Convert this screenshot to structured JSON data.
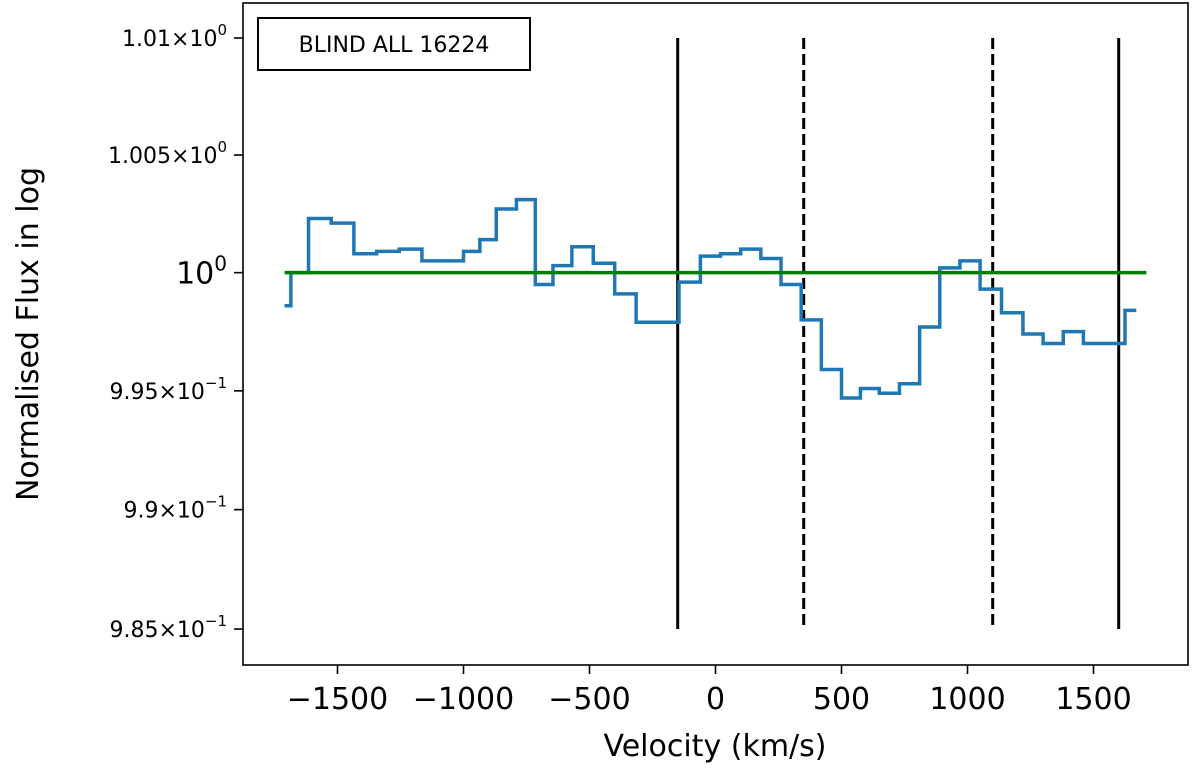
{
  "chart_data": {
    "type": "line",
    "title": "",
    "annotation": "BLIND ALL 16224",
    "xlabel": "Velocity (km/s)",
    "ylabel": "Normalised Flux in log",
    "xlim": [
      -1875,
      1875
    ],
    "ylim": [
      0.9835,
      1.0115
    ],
    "y_scale": "log",
    "grid": false,
    "x_ticks": [
      {
        "value": -1500,
        "label": "−1500"
      },
      {
        "value": -1000,
        "label": "−1000"
      },
      {
        "value": -500,
        "label": "−500"
      },
      {
        "value": 0,
        "label": "0"
      },
      {
        "value": 500,
        "label": "500"
      },
      {
        "value": 1000,
        "label": "1000"
      },
      {
        "value": 1500,
        "label": "1500"
      }
    ],
    "y_ticks": [
      {
        "value": 1.01,
        "mantissa": "1.01",
        "exp": "0",
        "large": false
      },
      {
        "value": 1.005,
        "mantissa": "1.005",
        "exp": "0",
        "large": false
      },
      {
        "value": 1.0,
        "mantissa": "10",
        "exp": "0",
        "large": true
      },
      {
        "value": 0.995,
        "mantissa": "9.95",
        "exp": "−1",
        "large": false
      },
      {
        "value": 0.99,
        "mantissa": "9.9",
        "exp": "−1",
        "large": false
      },
      {
        "value": 0.985,
        "mantissa": "9.85",
        "exp": "−1",
        "large": false
      }
    ],
    "series": [
      {
        "style": "steps-mid",
        "color": "#1f77b4",
        "x": [
          -1710,
          -1660,
          -1570,
          -1480,
          -1390,
          -1300,
          -1210,
          -1120,
          -1040,
          -960,
          -910,
          -830,
          -750,
          -680,
          -610,
          -530,
          -440,
          -360,
          -270,
          -190,
          -100,
          -20,
          60,
          140,
          220,
          300,
          380,
          460,
          540,
          610,
          690,
          770,
          850,
          930,
          1010,
          1090,
          1180,
          1260,
          1340,
          1420,
          1500,
          1580,
          1670
        ],
        "y": [
          0.9986,
          1.0,
          1.0023,
          1.0021,
          1.0008,
          1.0009,
          1.001,
          1.0005,
          1.0005,
          1.0009,
          1.0014,
          1.0027,
          1.0031,
          0.9995,
          1.0003,
          1.0011,
          1.0004,
          0.9991,
          0.9979,
          0.9979,
          0.9996,
          1.0007,
          1.0008,
          1.001,
          1.0006,
          0.9995,
          0.998,
          0.9959,
          0.9947,
          0.9951,
          0.9949,
          0.9953,
          0.9977,
          1.0002,
          1.0005,
          0.9993,
          0.9983,
          0.9974,
          0.997,
          0.9975,
          0.997,
          0.997,
          0.9984
        ]
      },
      {
        "style": "line",
        "color": "#008000",
        "x": [
          -1710,
          1710
        ],
        "y": [
          1.0,
          1.0
        ]
      }
    ],
    "vlines": [
      {
        "x": -150,
        "style": "solid",
        "ymin": 0.985,
        "ymax": 1.01
      },
      {
        "x": 350,
        "style": "dashed",
        "ymin": 0.985,
        "ymax": 1.01
      },
      {
        "x": 1100,
        "style": "dashed",
        "ymin": 0.985,
        "ymax": 1.01
      },
      {
        "x": 1600,
        "style": "solid",
        "ymin": 0.985,
        "ymax": 1.01
      }
    ]
  }
}
